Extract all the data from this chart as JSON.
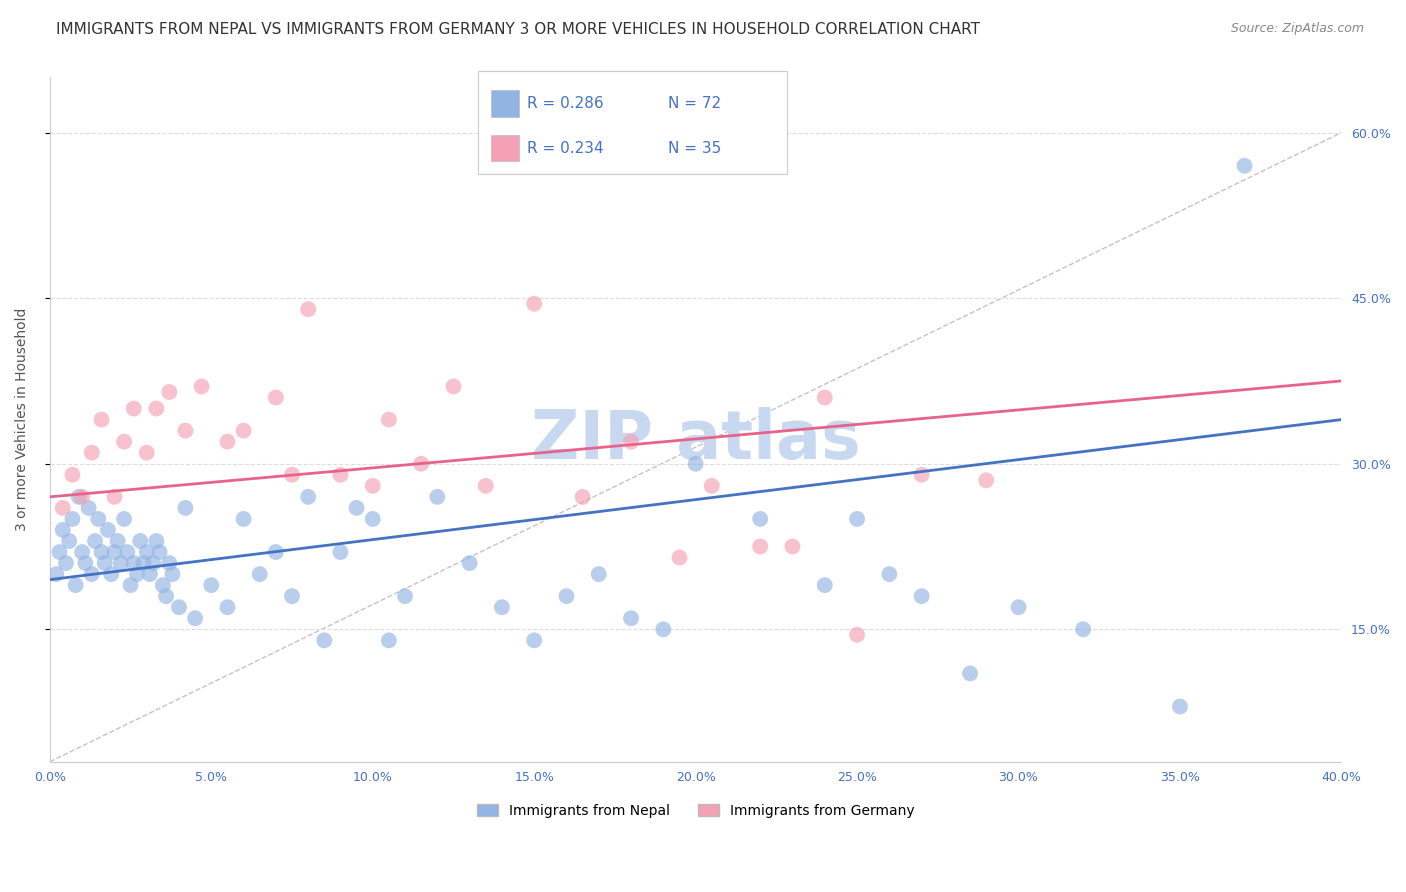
{
  "title": "IMMIGRANTS FROM NEPAL VS IMMIGRANTS FROM GERMANY 3 OR MORE VEHICLES IN HOUSEHOLD CORRELATION CHART",
  "source": "Source: ZipAtlas.com",
  "ylabel": "3 or more Vehicles in Household",
  "xlim": [
    0.0,
    40.0
  ],
  "ylim": [
    3.0,
    65.0
  ],
  "yticks": [
    15.0,
    30.0,
    45.0,
    60.0
  ],
  "xticks": [
    0.0,
    5.0,
    10.0,
    15.0,
    20.0,
    25.0,
    30.0,
    35.0,
    40.0
  ],
  "nepal_color": "#92b4e3",
  "germany_color": "#f4a0b5",
  "nepal_R": 0.286,
  "nepal_N": 72,
  "germany_R": 0.234,
  "germany_N": 35,
  "nepal_scatter_x": [
    0.2,
    0.3,
    0.4,
    0.5,
    0.6,
    0.7,
    0.8,
    0.9,
    1.0,
    1.1,
    1.2,
    1.3,
    1.4,
    1.5,
    1.6,
    1.7,
    1.8,
    1.9,
    2.0,
    2.1,
    2.2,
    2.3,
    2.4,
    2.5,
    2.6,
    2.7,
    2.8,
    2.9,
    3.0,
    3.1,
    3.2,
    3.3,
    3.4,
    3.5,
    3.6,
    3.7,
    3.8,
    4.0,
    4.2,
    4.5,
    5.0,
    5.5,
    6.0,
    6.5,
    7.0,
    7.5,
    8.0,
    8.5,
    9.0,
    9.5,
    10.0,
    10.5,
    11.0,
    12.0,
    13.0,
    14.0,
    15.0,
    16.0,
    17.0,
    18.0,
    19.0,
    20.0,
    22.0,
    24.0,
    25.0,
    26.0,
    27.0,
    28.5,
    30.0,
    32.0,
    35.0,
    37.0
  ],
  "nepal_scatter_y": [
    20.0,
    22.0,
    24.0,
    21.0,
    23.0,
    25.0,
    19.0,
    27.0,
    22.0,
    21.0,
    26.0,
    20.0,
    23.0,
    25.0,
    22.0,
    21.0,
    24.0,
    20.0,
    22.0,
    23.0,
    21.0,
    25.0,
    22.0,
    19.0,
    21.0,
    20.0,
    23.0,
    21.0,
    22.0,
    20.0,
    21.0,
    23.0,
    22.0,
    19.0,
    18.0,
    21.0,
    20.0,
    17.0,
    26.0,
    16.0,
    19.0,
    17.0,
    25.0,
    20.0,
    22.0,
    18.0,
    27.0,
    14.0,
    22.0,
    26.0,
    25.0,
    14.0,
    18.0,
    27.0,
    21.0,
    17.0,
    14.0,
    18.0,
    20.0,
    16.0,
    15.0,
    30.0,
    25.0,
    19.0,
    25.0,
    20.0,
    18.0,
    11.0,
    17.0,
    15.0,
    8.0,
    57.0
  ],
  "germany_scatter_x": [
    0.4,
    0.7,
    1.0,
    1.3,
    1.6,
    2.0,
    2.3,
    2.6,
    3.0,
    3.3,
    3.7,
    4.2,
    4.7,
    5.5,
    6.0,
    7.0,
    7.5,
    8.0,
    9.0,
    10.0,
    10.5,
    11.5,
    12.5,
    13.5,
    15.0,
    16.5,
    18.0,
    19.5,
    20.5,
    22.0,
    23.0,
    24.0,
    25.0,
    27.0,
    29.0
  ],
  "germany_scatter_y": [
    26.0,
    29.0,
    27.0,
    31.0,
    34.0,
    27.0,
    32.0,
    35.0,
    31.0,
    35.0,
    36.5,
    33.0,
    37.0,
    32.0,
    33.0,
    36.0,
    29.0,
    44.0,
    29.0,
    28.0,
    34.0,
    30.0,
    37.0,
    28.0,
    44.5,
    27.0,
    32.0,
    21.5,
    28.0,
    22.5,
    22.5,
    36.0,
    14.5,
    29.0,
    28.5
  ],
  "nepal_trend_x": [
    0.0,
    40.0
  ],
  "nepal_trend_y": [
    19.5,
    34.0
  ],
  "germany_trend_x": [
    0.0,
    40.0
  ],
  "germany_trend_y": [
    27.0,
    37.5
  ],
  "ref_line_x": [
    0.0,
    40.0
  ],
  "ref_line_y": [
    3.0,
    60.0
  ],
  "background_color": "#ffffff",
  "grid_color": "#dddddd",
  "title_fontsize": 11,
  "source_fontsize": 9,
  "axis_fontsize": 10,
  "tick_fontsize": 9,
  "legend_fontsize": 11,
  "watermark_text": "ZIP atlas",
  "watermark_color": "#c8d8f0",
  "watermark_fontsize": 48
}
